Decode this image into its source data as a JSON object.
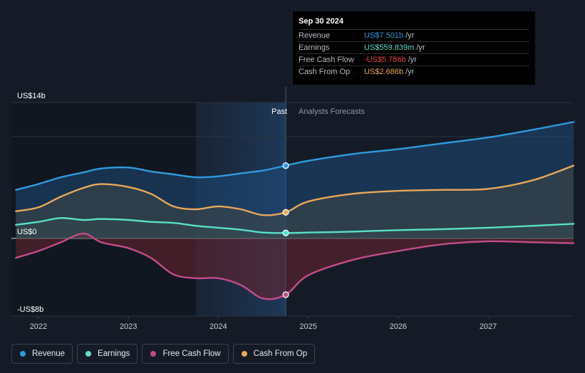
{
  "tooltip": {
    "date": "Sep 30 2024",
    "rows": [
      {
        "label": "Revenue",
        "value": "US$7.501b",
        "unit": "/yr",
        "color": "#2f9be0"
      },
      {
        "label": "Earnings",
        "value": "US$559.839m",
        "unit": "/yr",
        "color": "#58e0c5"
      },
      {
        "label": "Free Cash Flow",
        "value": "-US$5.786b",
        "unit": "/yr",
        "color": "#e84545"
      },
      {
        "label": "Cash From Op",
        "value": "US$2.686b",
        "unit": "/yr",
        "color": "#e9a85a"
      }
    ]
  },
  "labels": {
    "past": "Past",
    "forecast": "Analysts Forecasts"
  },
  "legend": [
    {
      "label": "Revenue",
      "color": "#2f9be0"
    },
    {
      "label": "Earnings",
      "color": "#58e0c5"
    },
    {
      "label": "Free Cash Flow",
      "color": "#c44b8a"
    },
    {
      "label": "Cash From Op",
      "color": "#e9a85a"
    }
  ],
  "chart_data": {
    "type": "line",
    "ylim": [
      -8,
      14
    ],
    "y_ticks": [
      {
        "value": 14,
        "label": "US$14b"
      },
      {
        "value": 0,
        "label": "US$0"
      },
      {
        "value": -8,
        "label": "-US$8b"
      }
    ],
    "xlim": [
      2021.7,
      2027.95
    ],
    "x_ticks": [
      {
        "value": 2022,
        "label": "2022"
      },
      {
        "value": 2023,
        "label": "2023"
      },
      {
        "value": 2024,
        "label": "2024"
      },
      {
        "value": 2025,
        "label": "2025"
      },
      {
        "value": 2026,
        "label": "2026"
      },
      {
        "value": 2027,
        "label": "2027"
      }
    ],
    "past_start": 2023.75,
    "divider": 2024.75,
    "series": [
      {
        "name": "Revenue",
        "color": "#2f9be0",
        "x": [
          2021.75,
          2022.0,
          2022.25,
          2022.5,
          2022.7,
          2023.0,
          2023.25,
          2023.5,
          2023.75,
          2024.0,
          2024.25,
          2024.5,
          2024.75,
          2025.0,
          2025.5,
          2026.0,
          2026.5,
          2027.0,
          2027.5,
          2027.95
        ],
        "y": [
          5.0,
          5.6,
          6.3,
          6.8,
          7.2,
          7.3,
          6.9,
          6.6,
          6.3,
          6.4,
          6.7,
          7.0,
          7.5,
          8.0,
          8.7,
          9.2,
          9.8,
          10.4,
          11.2,
          12.0
        ]
      },
      {
        "name": "Earnings",
        "color": "#58e0c5",
        "x": [
          2021.75,
          2022.0,
          2022.25,
          2022.5,
          2022.7,
          2023.0,
          2023.25,
          2023.5,
          2023.75,
          2024.0,
          2024.25,
          2024.5,
          2024.75,
          2025.0,
          2025.5,
          2026.0,
          2026.5,
          2027.0,
          2027.5,
          2027.95
        ],
        "y": [
          1.4,
          1.7,
          2.1,
          1.9,
          2.0,
          1.9,
          1.7,
          1.6,
          1.3,
          1.1,
          0.9,
          0.6,
          0.56,
          0.6,
          0.7,
          0.85,
          0.95,
          1.1,
          1.3,
          1.5
        ]
      },
      {
        "name": "Free Cash Flow",
        "color": "#c44b8a",
        "x": [
          2021.75,
          2022.0,
          2022.25,
          2022.5,
          2022.7,
          2023.0,
          2023.25,
          2023.5,
          2023.75,
          2024.0,
          2024.25,
          2024.5,
          2024.75,
          2025.0,
          2025.5,
          2026.0,
          2026.5,
          2027.0,
          2027.5,
          2027.95
        ],
        "y": [
          -2.0,
          -1.3,
          -0.4,
          0.5,
          -0.4,
          -1.0,
          -2.0,
          -3.7,
          -4.1,
          -4.1,
          -4.8,
          -6.2,
          -5.8,
          -3.8,
          -2.2,
          -1.3,
          -0.6,
          -0.3,
          -0.4,
          -0.5
        ]
      },
      {
        "name": "Cash From Op",
        "color": "#e9a85a",
        "x": [
          2021.75,
          2022.0,
          2022.25,
          2022.5,
          2022.7,
          2023.0,
          2023.25,
          2023.5,
          2023.75,
          2024.0,
          2024.25,
          2024.5,
          2024.75,
          2025.0,
          2025.5,
          2026.0,
          2026.5,
          2027.0,
          2027.5,
          2027.95
        ],
        "y": [
          2.8,
          3.2,
          4.3,
          5.2,
          5.6,
          5.3,
          4.6,
          3.3,
          3.0,
          3.3,
          3.0,
          2.4,
          2.686,
          3.8,
          4.6,
          4.9,
          5.0,
          5.1,
          6.0,
          7.5
        ]
      }
    ]
  }
}
